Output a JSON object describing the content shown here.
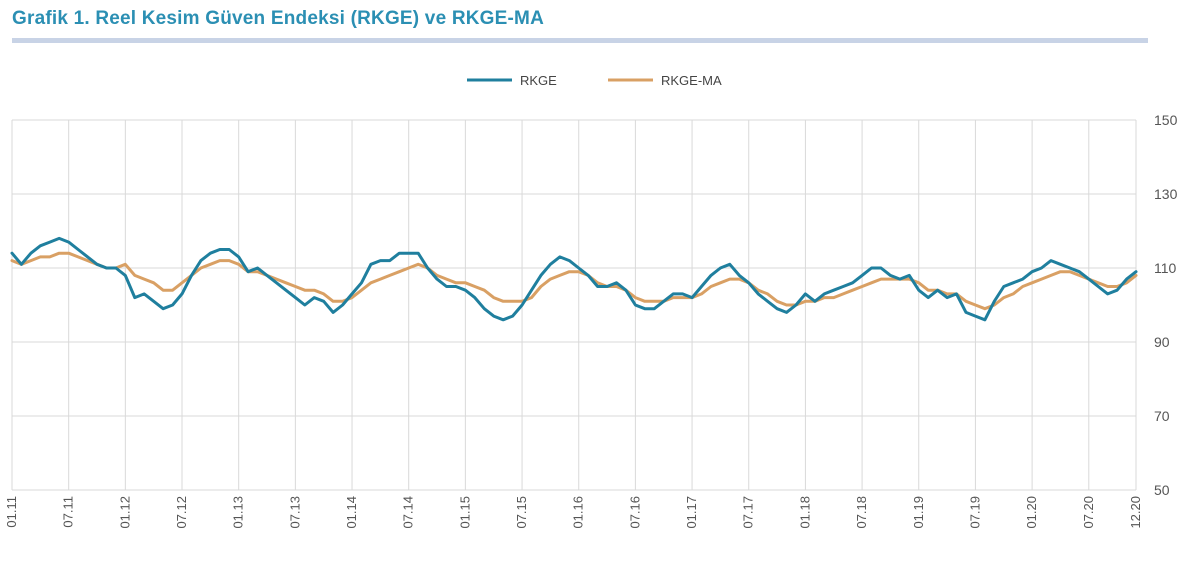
{
  "page": {
    "title": "Grafik 1. Reel Kesim Güven Endeksi (RKGE) ve RKGE-MA",
    "colors": {
      "title": "#2b8fb3",
      "rule": "#c8d3e6",
      "grid": "#d9d9d9"
    }
  },
  "chart_data": {
    "type": "line",
    "title": "Grafik 1. Reel Kesim Güven Endeksi (RKGE) ve RKGE-MA",
    "xlabel": "",
    "ylabel": "",
    "ylim": [
      50,
      150
    ],
    "yticks": [
      50,
      70,
      90,
      110,
      130,
      150
    ],
    "y_axis_side": "right",
    "grid": true,
    "legend_position": "top-center",
    "x_tick_labels": [
      "01.11",
      "07.11",
      "01.12",
      "07.12",
      "01.13",
      "07.13",
      "01.14",
      "07.14",
      "01.15",
      "07.15",
      "01.16",
      "07.16",
      "01.17",
      "07.17",
      "01.18",
      "07.18",
      "01.19",
      "07.19",
      "01.20",
      "07.20",
      "12.20"
    ],
    "x_tick_months": [
      0,
      6,
      12,
      18,
      24,
      30,
      36,
      42,
      48,
      54,
      60,
      66,
      72,
      78,
      84,
      90,
      96,
      102,
      108,
      114,
      119
    ],
    "x_start": "01.2011",
    "x_end": "12.2020",
    "series": [
      {
        "name": "RKGE",
        "color": "#1f7f9e",
        "values": [
          114,
          111,
          114,
          116,
          117,
          118,
          117,
          115,
          113,
          111,
          110,
          110,
          108,
          102,
          103,
          101,
          99,
          100,
          103,
          108,
          112,
          114,
          115,
          115,
          113,
          109,
          110,
          108,
          106,
          104,
          102,
          100,
          102,
          101,
          98,
          100,
          103,
          106,
          111,
          112,
          112,
          114,
          114,
          114,
          110,
          107,
          105,
          105,
          104,
          102,
          99,
          97,
          96,
          97,
          100,
          104,
          108,
          111,
          113,
          112,
          110,
          108,
          105,
          105,
          106,
          104,
          100,
          99,
          99,
          101,
          103,
          103,
          102,
          105,
          108,
          110,
          111,
          108,
          106,
          103,
          101,
          99,
          98,
          100,
          103,
          101,
          103,
          104,
          105,
          106,
          108,
          110,
          110,
          108,
          107,
          108,
          104,
          102,
          104,
          102,
          103,
          98,
          97,
          96,
          101,
          105,
          106,
          107,
          109,
          110,
          112,
          111,
          110,
          109,
          107,
          105,
          103,
          104,
          107,
          109
        ]
      },
      {
        "name": "RKGE-MA",
        "color": "#d9a064",
        "values": [
          112,
          111,
          112,
          113,
          113,
          114,
          114,
          113,
          112,
          111,
          110,
          110,
          111,
          108,
          107,
          106,
          104,
          104,
          106,
          108,
          110,
          111,
          112,
          112,
          111,
          109,
          109,
          108,
          107,
          106,
          105,
          104,
          104,
          103,
          101,
          101,
          102,
          104,
          106,
          107,
          108,
          109,
          110,
          111,
          110,
          108,
          107,
          106,
          106,
          105,
          104,
          102,
          101,
          101,
          101,
          102,
          105,
          107,
          108,
          109,
          109,
          108,
          106,
          105,
          105,
          104,
          102,
          101,
          101,
          101,
          102,
          102,
          102,
          103,
          105,
          106,
          107,
          107,
          106,
          104,
          103,
          101,
          100,
          100,
          101,
          101,
          102,
          102,
          103,
          104,
          105,
          106,
          107,
          107,
          107,
          107,
          106,
          104,
          104,
          103,
          103,
          101,
          100,
          99,
          100,
          102,
          103,
          105,
          106,
          107,
          108,
          109,
          109,
          108,
          107,
          106,
          105,
          105,
          106,
          108
        ]
      }
    ]
  }
}
